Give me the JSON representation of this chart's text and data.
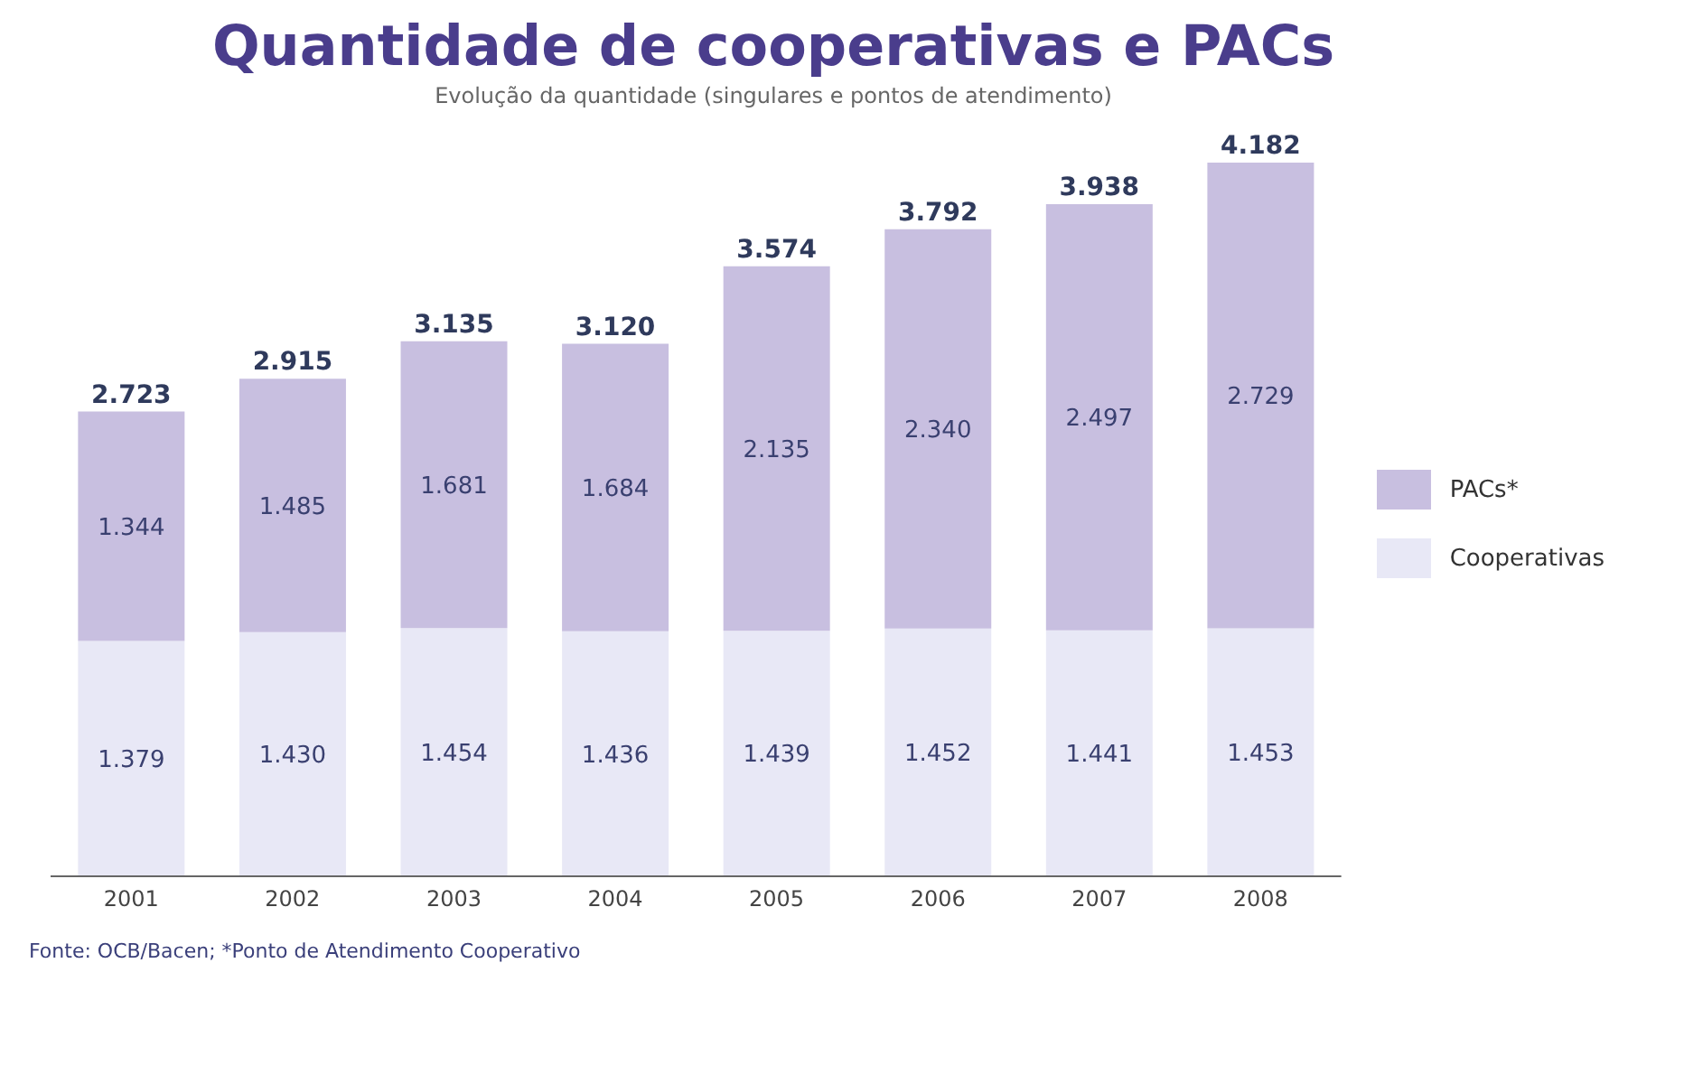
{
  "chart_data": {
    "type": "bar",
    "title": "Quantidade de cooperativas e PACs",
    "subtitle": "Evolução da quantidade (singulares e pontos de atendimento)",
    "categories": [
      "2001",
      "2002",
      "2003",
      "2004",
      "2005",
      "2006",
      "2007",
      "2008"
    ],
    "stacked": true,
    "legend": "right",
    "series": [
      {
        "name": "Cooperativas",
        "color": "#e8e8f6",
        "values": [
          1379,
          1430,
          1454,
          1436,
          1439,
          1452,
          1441,
          1453
        ],
        "value_labels": [
          "1.379",
          "1.430",
          "1.454",
          "1.436",
          "1.439",
          "1.452",
          "1.441",
          "1.453"
        ]
      },
      {
        "name": "PACs*",
        "color": "#c8bfe0",
        "values": [
          1344,
          1485,
          1681,
          1684,
          2135,
          2340,
          2497,
          2729
        ],
        "value_labels": [
          "1.344",
          "1.485",
          "1.681",
          "1.684",
          "2.135",
          "2.340",
          "2.497",
          "2.729"
        ]
      }
    ],
    "totals": [
      "2.723",
      "2.915",
      "3.135",
      "3.120",
      "3.574",
      "3.792",
      "3.938",
      "4.182"
    ],
    "annotations": [
      "Fonte: OCB/Bacen; *Ponto de Atendimento Cooperativo"
    ]
  }
}
